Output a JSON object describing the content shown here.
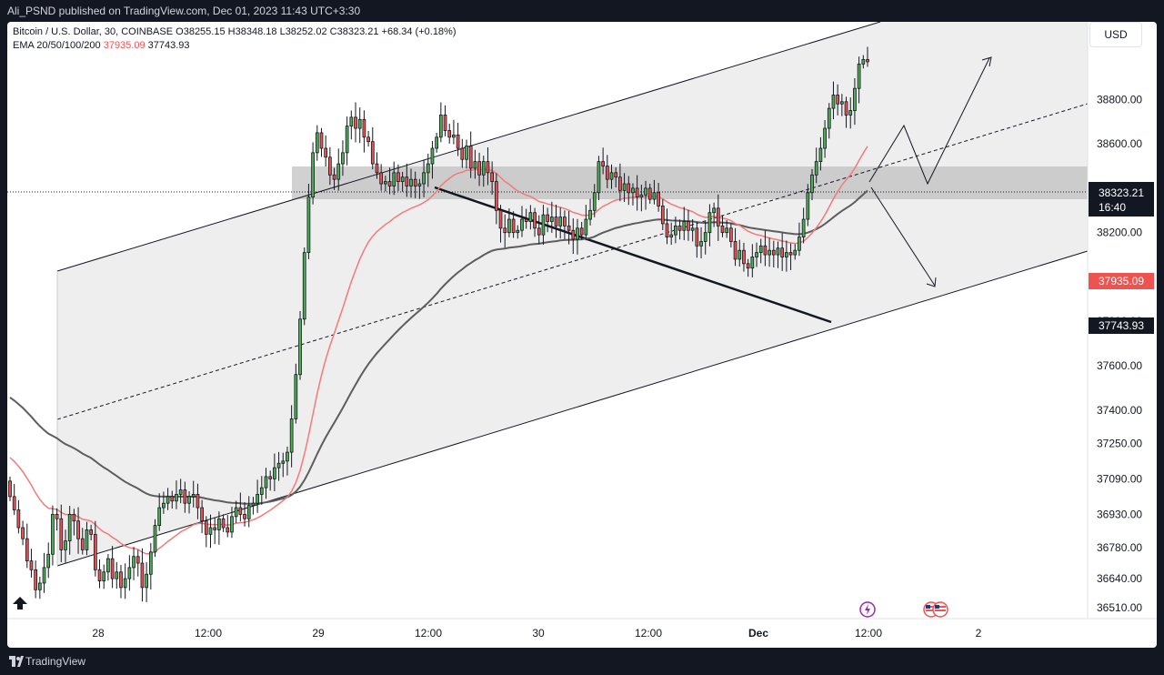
{
  "header": {
    "publisher": "Ali_PSND published on TradingView.com, Dec 01, 2023 11:43 UTC+3:30"
  },
  "legend": {
    "symbol": "Bitcoin / U.S. Dollar, 30, COINBASE",
    "o_label": "O",
    "o": "38255.15",
    "h_label": "H",
    "h": "38348.18",
    "l_label": "L",
    "l": "38252.02",
    "c_label": "C",
    "c": "38323.21",
    "change": "+68.34 (+0.18%)",
    "ema_label": "EMA 20/50/100/200",
    "ema1": "37935.09",
    "ema2": "37743.93"
  },
  "currency_button": "USD",
  "footer": {
    "brand": "TradingView"
  },
  "colors": {
    "up": "#4caf50",
    "down": "#ef5350",
    "ema_red": "#f27a7a",
    "ema_gray": "#5d5d5d",
    "zone": "#9e9e9e",
    "channel_fill": "#d8d8d8"
  },
  "chart_data": {
    "type": "candlestick",
    "title": "Bitcoin / U.S. Dollar, 30, COINBASE",
    "xlabel": "",
    "ylabel": "",
    "ylim": [
      36460,
      39150
    ],
    "y_ticks": [
      "38800.00",
      "38600.00",
      "38400.00",
      "38200.00",
      "38000.00",
      "37800.00",
      "37600.00",
      "37400.00",
      "37250.00",
      "37090.00",
      "36930.00",
      "36780.00",
      "36640.00",
      "36510.00"
    ],
    "x_ticks": [
      "28",
      "12:00",
      "29",
      "12:00",
      "30",
      "12:00",
      "Dec",
      "12:00",
      "2"
    ],
    "price_labels": {
      "last_price": "38323.21",
      "countdown": "16:40",
      "ema1_value": "37935.09",
      "ema2_value": "37743.93"
    },
    "candles": {
      "start": 37080,
      "steps": [
        -70,
        -60,
        -80,
        -50,
        -100,
        -40,
        -90,
        30,
        70,
        60,
        180,
        -20,
        -140,
        40,
        120,
        -30,
        -80,
        -50,
        90,
        -20,
        -160,
        -50,
        40,
        60,
        -90,
        30,
        -70,
        40,
        50,
        50,
        -30,
        -110,
        60,
        100,
        120,
        80,
        20,
        30,
        -20,
        30,
        20,
        -60,
        30,
        10,
        -60,
        -60,
        -60,
        30,
        -10,
        50,
        -40,
        -20,
        70,
        40,
        -30,
        -20,
        60,
        10,
        40,
        30,
        50,
        -10,
        50,
        20,
        10,
        40,
        150,
        200,
        250,
        300,
        250,
        200,
        90,
        -70,
        -40,
        -80,
        -20,
        70,
        50,
        120,
        40,
        -50,
        40,
        -80,
        -20,
        -100,
        -40,
        -50,
        10,
        -20,
        60,
        -40,
        20,
        -40,
        30,
        -30,
        10,
        50,
        40,
        70,
        50,
        100,
        -70,
        -30,
        10,
        -60,
        -50,
        60,
        -100,
        30,
        -60,
        60,
        -50,
        -40,
        -130,
        -80,
        -20,
        60,
        -60,
        10,
        50,
        -10,
        40,
        -70,
        -30,
        90,
        -30,
        20,
        -40,
        40,
        -40,
        -20,
        -40,
        50,
        -30,
        70,
        40,
        80,
        140,
        -20,
        -60,
        30,
        -20,
        -60,
        30,
        -40,
        20,
        -40,
        10,
        30,
        -50,
        30,
        -60,
        -80,
        -60,
        10,
        40,
        -20,
        40,
        -40,
        10,
        -80,
        20,
        40,
        90,
        20,
        -80,
        -30,
        20,
        -60,
        -80,
        40,
        -60,
        -20,
        50,
        20,
        30,
        -40,
        20,
        -20,
        30,
        -40,
        20,
        -10,
        20,
        60,
        80,
        120,
        80,
        60,
        60,
        90,
        90,
        60,
        -40,
        10,
        -60,
        20,
        100,
        110,
        20,
        -10
      ],
      "up_color": "#4caf50",
      "down_color": "#ef5350"
    }
  }
}
